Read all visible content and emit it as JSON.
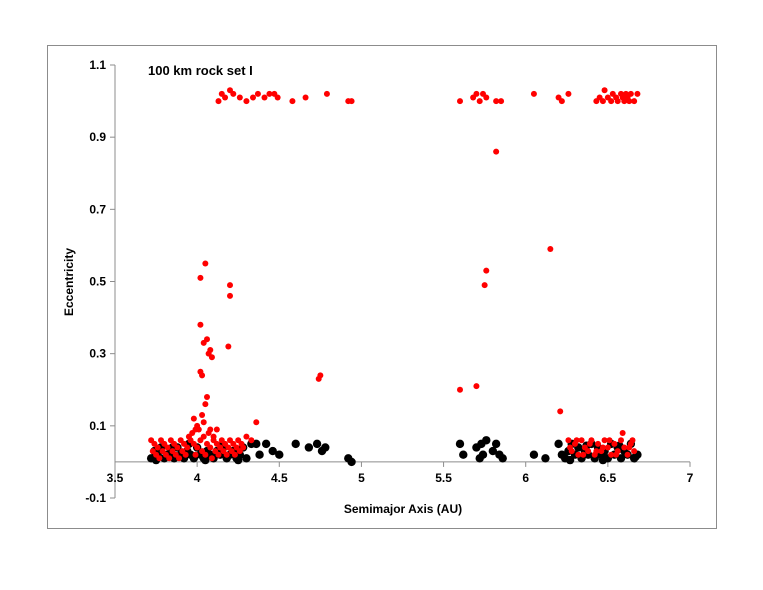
{
  "chart_data": {
    "type": "scatter",
    "title": "100 km rock set I",
    "xlabel": "Semimajor Axis (AU)",
    "ylabel": "Eccentricity",
    "xlim": [
      3.5,
      7
    ],
    "ylim": [
      -0.1,
      1.1
    ],
    "x_ticks": [
      "3.5",
      "4",
      "4.5",
      "5",
      "5.5",
      "6",
      "6.5",
      "7"
    ],
    "y_ticks": [
      "-0.1",
      "0.1",
      "0.3",
      "0.5",
      "0.7",
      "0.9",
      "1.1"
    ],
    "grid": false,
    "legend": "none",
    "series": [
      {
        "color": "#000000",
        "marker": "large-circle",
        "points": [
          [
            3.72,
            0.01
          ],
          [
            3.74,
            0.03
          ],
          [
            3.76,
            0.02
          ],
          [
            3.78,
            0.04
          ],
          [
            3.8,
            0.01
          ],
          [
            3.82,
            0.02
          ],
          [
            3.84,
            0.03
          ],
          [
            3.86,
            0.01
          ],
          [
            3.88,
            0.04
          ],
          [
            3.9,
            0.02
          ],
          [
            3.92,
            0.01
          ],
          [
            3.94,
            0.03
          ],
          [
            3.96,
            0.02
          ],
          [
            3.98,
            0.01
          ],
          [
            4.0,
            0.04
          ],
          [
            4.02,
            0.02
          ],
          [
            4.04,
            0.01
          ],
          [
            4.06,
            0.03
          ],
          [
            4.08,
            0.02
          ],
          [
            4.1,
            0.01
          ],
          [
            4.12,
            0.03
          ],
          [
            4.14,
            0.02
          ],
          [
            4.16,
            0.04
          ],
          [
            4.18,
            0.01
          ],
          [
            4.2,
            0.02
          ],
          [
            4.22,
            0.03
          ],
          [
            4.24,
            0.01
          ],
          [
            4.26,
            0.02
          ],
          [
            4.28,
            0.04
          ],
          [
            4.3,
            0.01
          ],
          [
            4.33,
            0.05
          ],
          [
            4.36,
            0.05
          ],
          [
            4.38,
            0.02
          ],
          [
            4.42,
            0.05
          ],
          [
            4.46,
            0.03
          ],
          [
            4.5,
            0.02
          ],
          [
            4.6,
            0.05
          ],
          [
            4.68,
            0.04
          ],
          [
            4.73,
            0.05
          ],
          [
            4.76,
            0.03
          ],
          [
            4.78,
            0.04
          ],
          [
            4.92,
            0.01
          ],
          [
            4.94,
            0.0
          ],
          [
            5.6,
            0.05
          ],
          [
            5.62,
            0.02
          ],
          [
            5.7,
            0.04
          ],
          [
            5.73,
            0.05
          ],
          [
            5.76,
            0.06
          ],
          [
            5.74,
            0.02
          ],
          [
            5.72,
            0.01
          ],
          [
            5.8,
            0.03
          ],
          [
            5.82,
            0.05
          ],
          [
            5.84,
            0.02
          ],
          [
            5.86,
            0.01
          ],
          [
            6.05,
            0.02
          ],
          [
            6.12,
            0.01
          ],
          [
            6.2,
            0.05
          ],
          [
            6.22,
            0.02
          ],
          [
            6.24,
            0.01
          ],
          [
            6.26,
            0.03
          ],
          [
            6.28,
            0.05
          ],
          [
            6.3,
            0.02
          ],
          [
            6.32,
            0.04
          ],
          [
            6.34,
            0.01
          ],
          [
            6.36,
            0.03
          ],
          [
            6.38,
            0.02
          ],
          [
            6.4,
            0.05
          ],
          [
            6.42,
            0.01
          ],
          [
            6.44,
            0.04
          ],
          [
            6.46,
            0.02
          ],
          [
            6.48,
            0.03
          ],
          [
            6.5,
            0.01
          ],
          [
            6.52,
            0.05
          ],
          [
            6.54,
            0.02
          ],
          [
            6.56,
            0.04
          ],
          [
            6.58,
            0.01
          ],
          [
            6.6,
            0.03
          ],
          [
            6.62,
            0.02
          ],
          [
            6.64,
            0.05
          ],
          [
            6.66,
            0.01
          ],
          [
            6.68,
            0.02
          ],
          [
            3.75,
            0.005
          ],
          [
            3.85,
            0.04
          ],
          [
            3.95,
            0.05
          ],
          [
            4.05,
            0.005
          ],
          [
            4.15,
            0.045
          ],
          [
            4.25,
            0.005
          ],
          [
            6.27,
            0.005
          ],
          [
            6.37,
            0.045
          ],
          [
            6.47,
            0.005
          ],
          [
            6.57,
            0.045
          ],
          [
            6.67,
            0.015
          ]
        ]
      },
      {
        "color": "#ff0000",
        "marker": "small-circle",
        "points": [
          [
            3.72,
            0.06
          ],
          [
            3.73,
            0.03
          ],
          [
            3.74,
            0.05
          ],
          [
            3.75,
            0.02
          ],
          [
            3.76,
            0.04
          ],
          [
            3.77,
            0.01
          ],
          [
            3.78,
            0.06
          ],
          [
            3.79,
            0.03
          ],
          [
            3.8,
            0.05
          ],
          [
            3.81,
            0.02
          ],
          [
            3.82,
            0.04
          ],
          [
            3.83,
            0.01
          ],
          [
            3.84,
            0.06
          ],
          [
            3.85,
            0.03
          ],
          [
            3.86,
            0.05
          ],
          [
            3.87,
            0.02
          ],
          [
            3.88,
            0.04
          ],
          [
            3.89,
            0.01
          ],
          [
            3.9,
            0.06
          ],
          [
            3.91,
            0.03
          ],
          [
            3.92,
            0.05
          ],
          [
            3.93,
            0.02
          ],
          [
            3.94,
            0.04
          ],
          [
            3.95,
            0.07
          ],
          [
            3.96,
            0.06
          ],
          [
            3.97,
            0.08
          ],
          [
            3.98,
            0.05
          ],
          [
            3.99,
            0.02
          ],
          [
            4.0,
            0.04
          ],
          [
            4.01,
            0.09
          ],
          [
            4.02,
            0.06
          ],
          [
            4.03,
            0.03
          ],
          [
            4.04,
            0.07
          ],
          [
            4.05,
            0.02
          ],
          [
            4.06,
            0.05
          ],
          [
            4.07,
            0.08
          ],
          [
            4.08,
            0.04
          ],
          [
            4.09,
            0.01
          ],
          [
            4.1,
            0.06
          ],
          [
            4.11,
            0.03
          ],
          [
            4.12,
            0.05
          ],
          [
            4.13,
            0.02
          ],
          [
            4.14,
            0.04
          ],
          [
            4.15,
            0.06
          ],
          [
            4.16,
            0.03
          ],
          [
            4.17,
            0.05
          ],
          [
            4.18,
            0.02
          ],
          [
            4.19,
            0.04
          ],
          [
            4.2,
            0.06
          ],
          [
            4.21,
            0.03
          ],
          [
            4.22,
            0.05
          ],
          [
            4.23,
            0.02
          ],
          [
            4.24,
            0.04
          ],
          [
            4.25,
            0.06
          ],
          [
            4.26,
            0.03
          ],
          [
            4.27,
            0.05
          ],
          [
            4.28,
            0.04
          ],
          [
            4.3,
            0.07
          ],
          [
            4.33,
            0.06
          ],
          [
            4.36,
            0.11
          ],
          [
            3.98,
            0.12
          ],
          [
            4.0,
            0.1
          ],
          [
            4.03,
            0.13
          ],
          [
            4.05,
            0.16
          ],
          [
            4.06,
            0.18
          ],
          [
            4.04,
            0.11
          ],
          [
            3.99,
            0.09
          ],
          [
            4.08,
            0.09
          ],
          [
            4.1,
            0.07
          ],
          [
            4.12,
            0.09
          ],
          [
            4.02,
            0.25
          ],
          [
            4.03,
            0.24
          ],
          [
            4.04,
            0.33
          ],
          [
            4.06,
            0.34
          ],
          [
            4.08,
            0.31
          ],
          [
            4.09,
            0.29
          ],
          [
            4.07,
            0.3
          ],
          [
            4.19,
            0.32
          ],
          [
            4.02,
            0.38
          ],
          [
            4.02,
            0.51
          ],
          [
            4.05,
            0.55
          ],
          [
            4.2,
            0.49
          ],
          [
            4.2,
            0.46
          ],
          [
            4.75,
            0.24
          ],
          [
            4.74,
            0.23
          ],
          [
            5.6,
            0.2
          ],
          [
            5.7,
            0.21
          ],
          [
            5.75,
            0.49
          ],
          [
            5.76,
            0.53
          ],
          [
            5.82,
            0.86
          ],
          [
            6.15,
            0.59
          ],
          [
            6.21,
            0.14
          ],
          [
            6.26,
            0.06
          ],
          [
            6.28,
            0.03
          ],
          [
            6.3,
            0.05
          ],
          [
            6.32,
            0.02
          ],
          [
            6.34,
            0.06
          ],
          [
            6.36,
            0.04
          ],
          [
            6.38,
            0.03
          ],
          [
            6.4,
            0.06
          ],
          [
            6.42,
            0.02
          ],
          [
            6.44,
            0.05
          ],
          [
            6.46,
            0.03
          ],
          [
            6.48,
            0.06
          ],
          [
            6.5,
            0.04
          ],
          [
            6.52,
            0.02
          ],
          [
            6.54,
            0.05
          ],
          [
            6.56,
            0.03
          ],
          [
            6.58,
            0.06
          ],
          [
            6.59,
            0.08
          ],
          [
            6.6,
            0.04
          ],
          [
            6.62,
            0.02
          ],
          [
            6.64,
            0.05
          ],
          [
            6.66,
            0.03
          ],
          [
            6.27,
            0.04
          ],
          [
            6.31,
            0.06
          ],
          [
            6.35,
            0.02
          ],
          [
            6.39,
            0.05
          ],
          [
            6.43,
            0.03
          ],
          [
            6.47,
            0.04
          ],
          [
            6.51,
            0.06
          ],
          [
            6.55,
            0.02
          ],
          [
            6.63,
            0.04
          ],
          [
            6.65,
            0.06
          ],
          [
            4.13,
            1.0
          ],
          [
            4.15,
            1.02
          ],
          [
            4.17,
            1.01
          ],
          [
            4.2,
            1.03
          ],
          [
            4.22,
            1.02
          ],
          [
            4.26,
            1.01
          ],
          [
            4.3,
            1.0
          ],
          [
            4.34,
            1.01
          ],
          [
            4.37,
            1.02
          ],
          [
            4.41,
            1.01
          ],
          [
            4.44,
            1.02
          ],
          [
            4.47,
            1.02
          ],
          [
            4.49,
            1.01
          ],
          [
            4.58,
            1.0
          ],
          [
            4.66,
            1.01
          ],
          [
            4.79,
            1.02
          ],
          [
            4.92,
            1.0
          ],
          [
            4.94,
            1.0
          ],
          [
            5.6,
            1.0
          ],
          [
            5.68,
            1.01
          ],
          [
            5.7,
            1.02
          ],
          [
            5.72,
            1.0
          ],
          [
            5.74,
            1.02
          ],
          [
            5.76,
            1.01
          ],
          [
            5.82,
            1.0
          ],
          [
            5.85,
            1.0
          ],
          [
            6.05,
            1.02
          ],
          [
            6.2,
            1.01
          ],
          [
            6.22,
            1.0
          ],
          [
            6.26,
            1.02
          ],
          [
            6.43,
            1.0
          ],
          [
            6.45,
            1.01
          ],
          [
            6.47,
            1.0
          ],
          [
            6.48,
            1.03
          ],
          [
            6.5,
            1.01
          ],
          [
            6.52,
            1.0
          ],
          [
            6.53,
            1.02
          ],
          [
            6.55,
            1.01
          ],
          [
            6.56,
            1.0
          ],
          [
            6.58,
            1.02
          ],
          [
            6.59,
            1.01
          ],
          [
            6.6,
            1.0
          ],
          [
            6.61,
            1.02
          ],
          [
            6.62,
            1.01
          ],
          [
            6.63,
            1.0
          ],
          [
            6.64,
            1.02
          ],
          [
            6.66,
            1.0
          ],
          [
            6.68,
            1.02
          ]
        ]
      }
    ]
  }
}
